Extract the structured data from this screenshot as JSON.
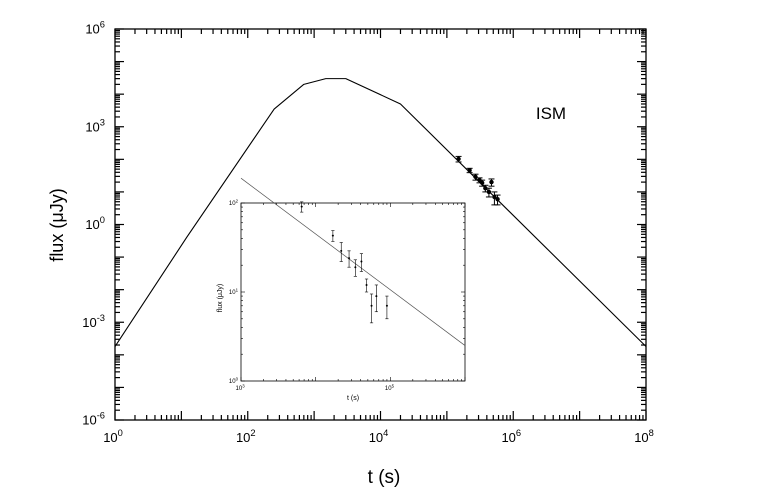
{
  "chart_data": [
    {
      "type": "line",
      "title": "",
      "xlabel": "t (s)",
      "ylabel": "flux (μJy)",
      "annotation": "ISM",
      "x_scale": "log",
      "y_scale": "log",
      "xlim": [
        1,
        100000000
      ],
      "ylim": [
        1e-06,
        1000000
      ],
      "x_ticks": [
        {
          "value": 1,
          "base": "10",
          "exp": "0"
        },
        {
          "value": 100,
          "base": "10",
          "exp": "2"
        },
        {
          "value": 10000,
          "base": "10",
          "exp": "4"
        },
        {
          "value": 1000000,
          "base": "10",
          "exp": "6"
        },
        {
          "value": 100000000,
          "base": "10",
          "exp": "8"
        }
      ],
      "y_ticks": [
        {
          "value": 1e-06,
          "base": "10",
          "exp": "-6"
        },
        {
          "value": 0.001,
          "base": "10",
          "exp": "-3"
        },
        {
          "value": 1,
          "base": "10",
          "exp": "0"
        },
        {
          "value": 1000,
          "base": "10",
          "exp": "3"
        },
        {
          "value": 1000000,
          "base": "10",
          "exp": "6"
        }
      ],
      "grid": false,
      "series": [
        {
          "kind": "model",
          "points": [
            [
              1,
              0.00018
            ],
            [
              12,
              0.4
            ],
            [
              250,
              3500
            ],
            [
              700,
              20000
            ],
            [
              1500,
              30000
            ],
            [
              3000,
              30000
            ],
            [
              20000,
              5000
            ],
            [
              100000000,
              0.00018
            ]
          ]
        },
        {
          "kind": "observed",
          "points": [
            [
              150000,
              103,
              20
            ],
            [
              220000,
              46,
              7
            ],
            [
              270000,
              29,
              6
            ],
            [
              310000,
              23,
              4
            ],
            [
              340000,
              19,
              4
            ],
            [
              380000,
              13,
              3
            ],
            [
              430000,
              10,
              3
            ],
            [
              470000,
              20,
              5
            ],
            [
              520000,
              7,
              3
            ],
            [
              580000,
              6,
              2
            ]
          ]
        }
      ]
    },
    {
      "type": "line",
      "title": "",
      "xlabel": "t (s)",
      "ylabel": "flux (μJy)",
      "x_scale": "log",
      "y_scale": "log",
      "xlim": [
        1000,
        1000000
      ],
      "ylim": [
        1,
        100
      ],
      "x_ticks": [
        {
          "value": 1000,
          "base": "10",
          "exp": "3"
        },
        {
          "value": 100000,
          "base": "10",
          "exp": "5"
        }
      ],
      "y_ticks": [
        {
          "value": 1,
          "base": "10",
          "exp": "0"
        },
        {
          "value": 10,
          "base": "10",
          "exp": "1"
        },
        {
          "value": 100,
          "base": "10",
          "exp": "2"
        }
      ],
      "grid": false,
      "series": [
        {
          "kind": "model",
          "points": [
            [
              1000,
              190
            ],
            [
              1000000,
              2.5
            ]
          ]
        },
        {
          "kind": "observed",
          "points": [
            [
              6500,
              91,
              12
            ],
            [
              17000,
              43,
              6
            ],
            [
              22000,
              29,
              7
            ],
            [
              28000,
              24,
              5
            ],
            [
              34000,
              19,
              4
            ],
            [
              41000,
              22,
              5
            ],
            [
              48000,
              12,
              2
            ],
            [
              56000,
              7,
              2.5
            ],
            [
              65000,
              9,
              3
            ],
            [
              90000,
              7,
              2
            ]
          ]
        }
      ]
    }
  ]
}
